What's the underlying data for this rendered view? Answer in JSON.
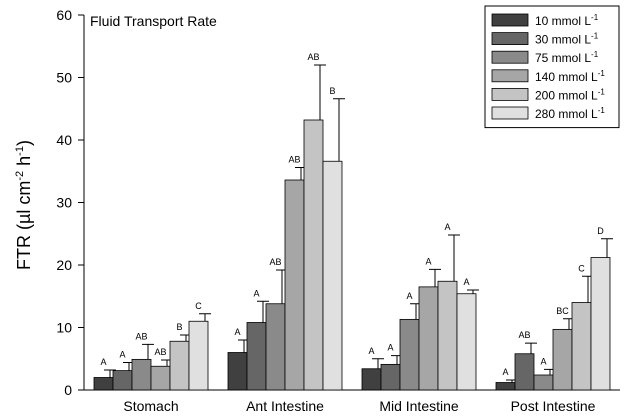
{
  "chart_data": {
    "type": "bar",
    "title": "Fluid Transport Rate",
    "ylabel": "FTR (µl cm-2 h-1)",
    "ylabel_parts": {
      "base": "FTR (µl cm",
      "exp1": "-2",
      "mid": " h",
      "exp2": "-1",
      "end": ")"
    },
    "xlabel": "",
    "ylim": [
      0,
      60
    ],
    "yticks": [
      "0",
      "10",
      "20",
      "30",
      "40",
      "50",
      "60"
    ],
    "categories": [
      "Stomach",
      "Ant Intestine",
      "Mid Intestine",
      "Post Intestine"
    ],
    "legend_position": "top-right",
    "series": [
      {
        "name": "10 mmol L-1",
        "unit_base": "10 mmol L",
        "unit_exp": "-1",
        "color": "#404040",
        "values": [
          2.0,
          6.0,
          3.4,
          1.2
        ],
        "errors": [
          1.2,
          2.0,
          1.6,
          0.4
        ],
        "letters": [
          "A",
          "A",
          "A",
          "A"
        ]
      },
      {
        "name": "30 mmol L-1",
        "unit_base": "30 mmol L",
        "unit_exp": "-1",
        "color": "#666666",
        "values": [
          3.1,
          10.8,
          4.1,
          5.8
        ],
        "errors": [
          1.3,
          3.4,
          1.4,
          1.7
        ],
        "letters": [
          "A",
          "A",
          "A",
          "AB"
        ]
      },
      {
        "name": "75 mmol L-1",
        "unit_base": "75 mmol L",
        "unit_exp": "-1",
        "color": "#8a8a8a",
        "values": [
          4.9,
          13.8,
          11.3,
          2.4
        ],
        "errors": [
          2.4,
          5.4,
          2.5,
          0.9
        ],
        "letters": [
          "AB",
          "AB",
          "A",
          "A"
        ]
      },
      {
        "name": "140 mmol L-1",
        "unit_base": "140 mmol L",
        "unit_exp": "-1",
        "color": "#a6a6a6",
        "values": [
          3.8,
          33.6,
          16.5,
          9.7
        ],
        "errors": [
          1.0,
          2.0,
          2.8,
          1.7
        ],
        "letters": [
          "AB",
          "AB",
          "A",
          "BC"
        ]
      },
      {
        "name": "200 mmol L-1",
        "unit_base": "200 mmol L",
        "unit_exp": "-1",
        "color": "#c4c4c4",
        "values": [
          7.8,
          43.2,
          17.4,
          14.0
        ],
        "errors": [
          1.0,
          8.8,
          7.4,
          4.2
        ],
        "letters": [
          "B",
          "AB",
          "A",
          "C"
        ]
      },
      {
        "name": "280 mmol L-1",
        "unit_base": "280 mmol L",
        "unit_exp": "-1",
        "color": "#e0e0e0",
        "values": [
          11.0,
          36.6,
          15.4,
          21.2
        ],
        "errors": [
          1.2,
          10.0,
          0.6,
          3.0
        ],
        "letters": [
          "C",
          "B",
          "A",
          "D"
        ]
      }
    ]
  }
}
